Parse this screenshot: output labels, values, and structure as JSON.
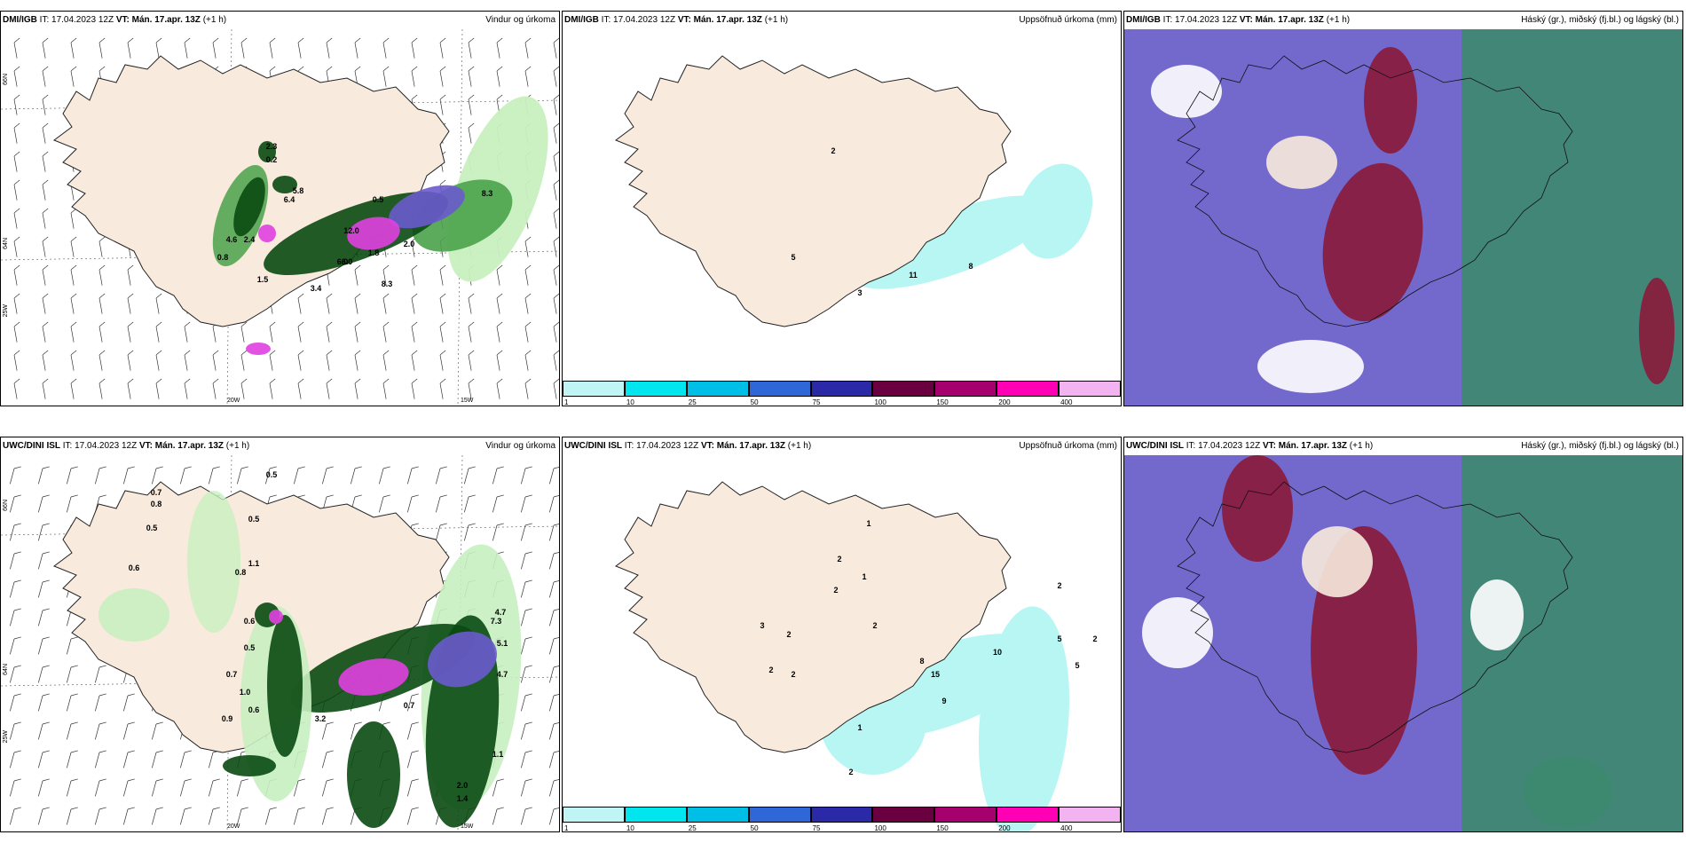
{
  "common": {
    "init_time": "IT: 17.04.2023 12Z",
    "valid_time": "VT: Mán. 17.apr. 13Z",
    "lead": "(+1 h)"
  },
  "panels": [
    {
      "model": "DMI/IGB",
      "type": "Vindur og úrkoma",
      "labels": [
        "2.3",
        "0.2",
        "0.5",
        "4.6",
        "6.4",
        "5.8",
        "2.4",
        "0.8",
        "1.5",
        "6.0",
        "1.8",
        "3.4",
        "6.0",
        "8.3",
        "12.0",
        "2.0",
        "8.3"
      ],
      "lat_labels": [
        "66N",
        "64N",
        "25W"
      ],
      "lon_labels": [
        "20W",
        "15W"
      ]
    },
    {
      "model": "DMI/IGB",
      "type": "Uppsöfnuð úrkoma (mm)",
      "labels": [
        "2",
        "5",
        "11",
        "8",
        "3"
      ]
    },
    {
      "model": "DMI/IGB",
      "type": "Háský (gr.), miðský (fj.bl.) og lágský (bl.)"
    },
    {
      "model": "UWC/DINI ISL",
      "type": "Vindur og úrkoma",
      "labels": [
        "0.5",
        "0.7",
        "0.8",
        "0.5",
        "0.6",
        "0.5",
        "1.1",
        "0.8",
        "0.6",
        "0.5",
        "0.7",
        "1.0",
        "0.9",
        "0.6",
        "4.7",
        "5.1",
        "7.3",
        "4.7",
        "2.0",
        "1.4",
        "1.1",
        "3.2",
        "0.7"
      ],
      "lat_labels": [
        "66N",
        "64N",
        "25W"
      ],
      "lon_labels": [
        "20W",
        "15W"
      ]
    },
    {
      "model": "UWC/DINI ISL",
      "type": "Uppsöfnuð úrkoma (mm)",
      "labels": [
        "1",
        "2",
        "1",
        "2",
        "2",
        "2",
        "3",
        "2",
        "2",
        "15",
        "8",
        "9",
        "10",
        "5",
        "5",
        "2",
        "2",
        "1",
        "2"
      ]
    },
    {
      "model": "UWC/DINI ISL",
      "type": "Háský (gr.), miðský (fj.bl.) og lágský (bl.)"
    }
  ],
  "colorbar": {
    "ticks": [
      "1",
      "10",
      "25",
      "50",
      "75",
      "100",
      "150",
      "200",
      "400"
    ],
    "colors": [
      "#bff5f5",
      "#00e5ee",
      "#00bfe6",
      "#2f66d8",
      "#2a2aa8",
      "#6b0040",
      "#a6006e",
      "#ff00b4",
      "#f3b3f0"
    ]
  },
  "palette": {
    "land": "#f8eadc",
    "coast": "#222222",
    "sea": "#ffffff",
    "green_light": "#c8f0c0",
    "green": "#4aa24a",
    "green_dark": "#0a4a12",
    "purple": "#6a5acd",
    "magenta": "#e040e0",
    "cyan": "#b8f6f4",
    "cloud_high": "#3d8a6e",
    "cloud_mid": "#8b1a3a",
    "cloud_low": "#5a4fc4"
  }
}
